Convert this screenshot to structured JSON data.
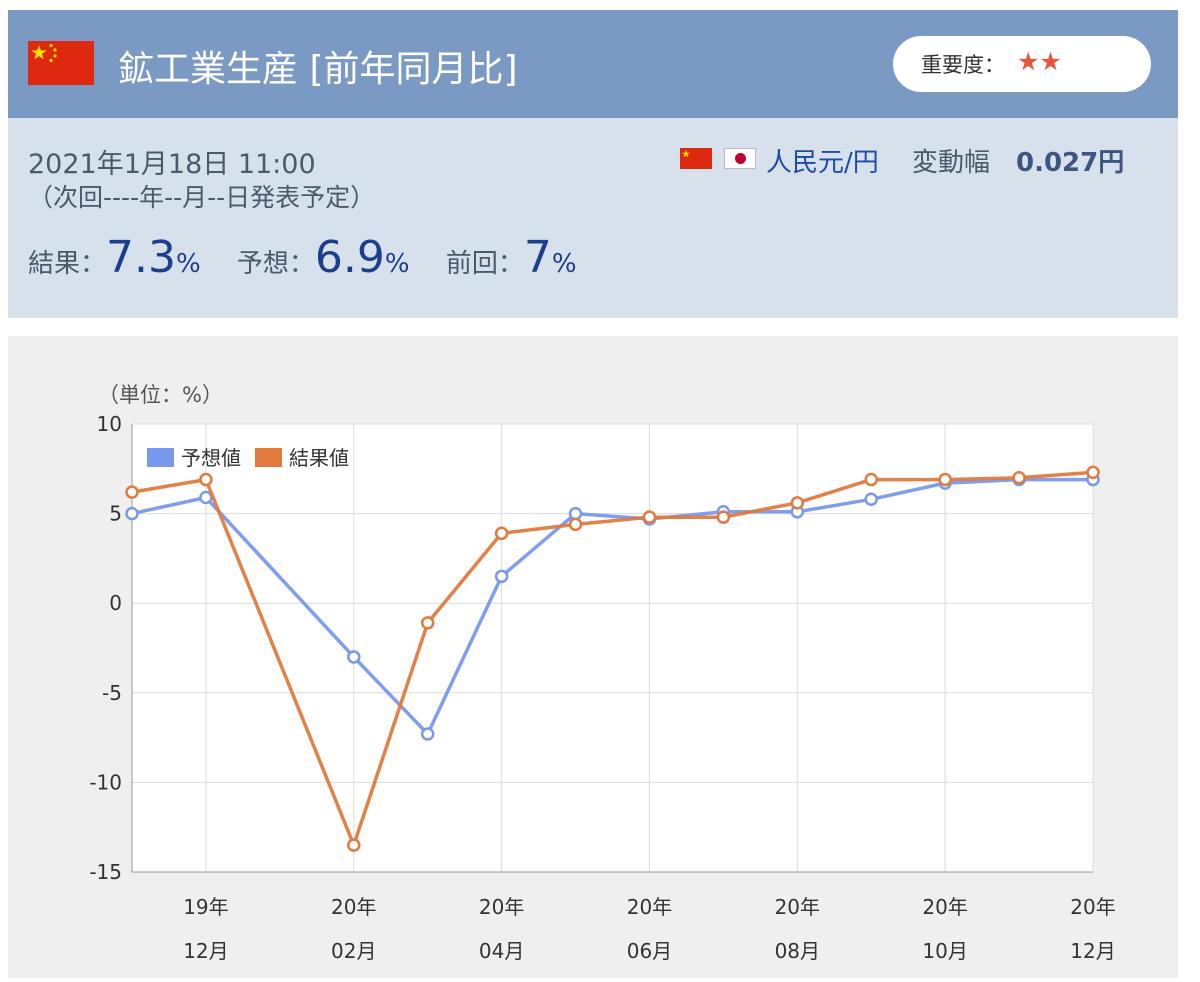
{
  "header": {
    "title": "鉱工業生産 [前年同月比]",
    "importance_label": "重要度：",
    "importance_stars": "★★",
    "flag_icon": "china-flag-icon"
  },
  "info": {
    "datetime": "2021年1月18日 11:00",
    "next_release": "（次回----年--月--日発表予定）",
    "currency_pair": "人民元/円",
    "range_label": "変動幅",
    "range_value": "0.027円",
    "result_label": "結果：",
    "result_value": "7.3",
    "forecast_label": "予想：",
    "forecast_value": "6.9",
    "previous_label": "前回：",
    "previous_value": "7",
    "percent": "%"
  },
  "chart_data": {
    "type": "line",
    "unit_label": "（単位：%）",
    "ylim": [
      -15,
      10
    ],
    "yticks": [
      10,
      5,
      0,
      -5,
      -10,
      -15
    ],
    "x_index": [
      0,
      1,
      2,
      3,
      4,
      5,
      6,
      7,
      8,
      9,
      10,
      11,
      12,
      13
    ],
    "x_tick_labels": [
      {
        "index": 1,
        "year": "19年",
        "month": "12月"
      },
      {
        "index": 3,
        "year": "20年",
        "month": "02月"
      },
      {
        "index": 5,
        "year": "20年",
        "month": "04月"
      },
      {
        "index": 7,
        "year": "20年",
        "month": "06月"
      },
      {
        "index": 9,
        "year": "20年",
        "month": "08月"
      },
      {
        "index": 11,
        "year": "20年",
        "month": "10月"
      },
      {
        "index": 13,
        "year": "20年",
        "month": "12月"
      }
    ],
    "legend_position": "top-left",
    "grid": true,
    "series": [
      {
        "name": "予想値",
        "color": "#7899ee",
        "points": [
          [
            0,
            5.0
          ],
          [
            1,
            5.9
          ],
          [
            3,
            -3.0
          ],
          [
            4,
            -7.3
          ],
          [
            5,
            1.5
          ],
          [
            6,
            5.0
          ],
          [
            7,
            4.7
          ],
          [
            8,
            5.1
          ],
          [
            9,
            5.1
          ],
          [
            10,
            5.8
          ],
          [
            11,
            6.7
          ],
          [
            12,
            6.9
          ],
          [
            13,
            6.9
          ]
        ]
      },
      {
        "name": "結果値",
        "color": "#e07a3e",
        "points": [
          [
            0,
            6.2
          ],
          [
            1,
            6.9
          ],
          [
            3,
            -13.5
          ],
          [
            4,
            -1.1
          ],
          [
            5,
            3.9
          ],
          [
            6,
            4.4
          ],
          [
            7,
            4.8
          ],
          [
            8,
            4.8
          ],
          [
            9,
            5.6
          ],
          [
            10,
            6.9
          ],
          [
            11,
            6.9
          ],
          [
            12,
            7.0
          ],
          [
            13,
            7.3
          ]
        ]
      }
    ]
  }
}
